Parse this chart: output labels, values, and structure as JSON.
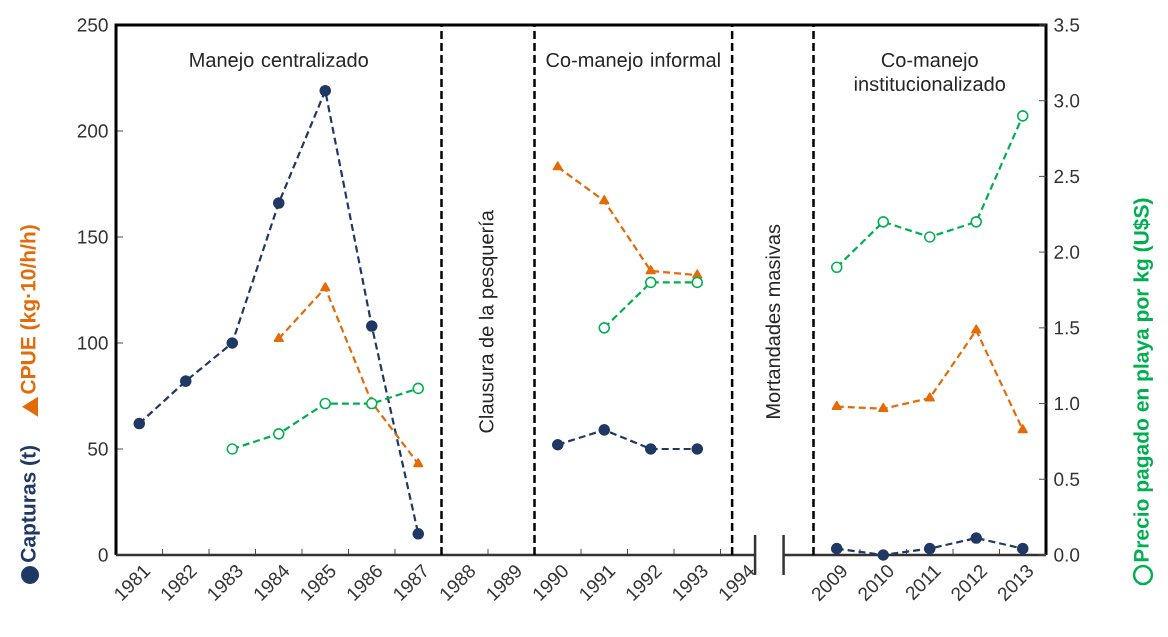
{
  "chart_data": {
    "type": "line",
    "categories": [
      "1981",
      "1982",
      "1983",
      "1984",
      "1985",
      "1986",
      "1987",
      "1988",
      "1989",
      "1990",
      "1991",
      "1992",
      "1993",
      "1994",
      null,
      "2009",
      "2010",
      "2011",
      "2012",
      "2013"
    ],
    "series": [
      {
        "name": "Capturas (t)",
        "color": "#1f3864",
        "marker": "circle",
        "values": [
          62,
          82,
          100,
          166,
          219,
          108,
          10,
          null,
          null,
          52,
          59,
          50,
          50,
          null,
          null,
          3,
          0,
          3,
          8,
          3
        ]
      },
      {
        "name": "CPUE (kg·10/h/h)",
        "color": "#e36c09",
        "marker": "triangle",
        "values": [
          null,
          null,
          null,
          102,
          126,
          72,
          43,
          null,
          null,
          183,
          167,
          134,
          132,
          null,
          null,
          70,
          69,
          74,
          106,
          59
        ]
      },
      {
        "name": "Precio pagado en playa por kg (U$S)",
        "color": "#00b050",
        "marker": "circle",
        "axis": "y2",
        "values": [
          null,
          null,
          0.7,
          0.8,
          1.0,
          1.0,
          1.1,
          null,
          null,
          null,
          1.5,
          1.8,
          1.8,
          null,
          null,
          1.9,
          2.2,
          2.1,
          2.2,
          2.9
        ]
      }
    ],
    "ylim": [
      0,
      250
    ],
    "yticks": [
      0,
      50,
      100,
      150,
      200,
      250
    ],
    "y2lim": [
      0,
      3.5
    ],
    "y2ticks": [
      {
        "value": 0,
        "label": "0.0"
      },
      0.5,
      {
        "value": 1,
        "label": "1.0"
      },
      1.5,
      {
        "value": 2,
        "label": "2.0"
      },
      2.5,
      {
        "value": 3,
        "label": "3.0"
      },
      3.5
    ],
    "line_style": "dashed",
    "annotations": [
      "Manejo centralizado",
      "Clausura de la pesquería",
      "Co-manejo informal",
      "Mortandades masivas",
      "Co-manejo institucionalizado"
    ]
  }
}
